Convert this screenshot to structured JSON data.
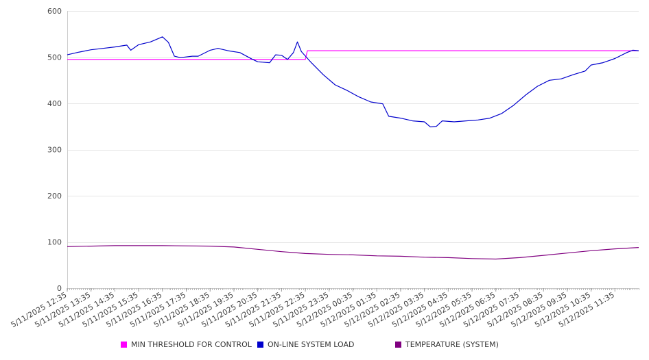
{
  "chart_data": {
    "type": "line",
    "title": "",
    "xlabel": "",
    "ylabel": "",
    "ylim": [
      0,
      600
    ],
    "yticks": [
      0,
      100,
      200,
      300,
      400,
      500,
      600
    ],
    "grid": true,
    "legend_position": "bottom",
    "x_tick_labels": [
      "5/11/2025 12:35",
      "5/11/2025 13:35",
      "5/11/2025 14:35",
      "5/11/2025 15:35",
      "5/11/2025 16:35",
      "5/11/2025 17:35",
      "5/11/2025 18:35",
      "5/11/2025 19:35",
      "5/11/2025 20:35",
      "5/11/2025 21:35",
      "5/11/2025 22:35",
      "5/11/2025 23:35",
      "5/12/2025 00:35",
      "5/12/2025 01:35",
      "5/12/2025 02:35",
      "5/12/2025 03:35",
      "5/12/2025 04:35",
      "5/12/2025 05:35",
      "5/12/2025 06:35",
      "5/12/2025 07:35",
      "5/12/2025 08:35",
      "5/12/2025 09:35",
      "5/12/2025 10:35",
      "5/12/2025 11:35"
    ],
    "series": [
      {
        "name": "MIN THRESHOLD FOR CONTROL",
        "color": "#ff00ff",
        "points": [
          [
            "5/11/2025 12:35",
            495
          ],
          [
            "5/11/2025 22:35",
            495
          ],
          [
            "5/11/2025 22:40",
            514
          ],
          [
            "5/12/2025 12:35",
            514
          ]
        ]
      },
      {
        "name": "ON-LINE SYSTEM LOAD",
        "color": "#0000cc",
        "points": [
          [
            "5/11/2025 12:35",
            505
          ],
          [
            "5/11/2025 13:05",
            511
          ],
          [
            "5/11/2025 13:35",
            516
          ],
          [
            "5/11/2025 14:05",
            519
          ],
          [
            "5/11/2025 14:35",
            522
          ],
          [
            "5/11/2025 15:05",
            526
          ],
          [
            "5/11/2025 15:15",
            515
          ],
          [
            "5/11/2025 15:35",
            527
          ],
          [
            "5/11/2025 16:05",
            533
          ],
          [
            "5/11/2025 16:35",
            544
          ],
          [
            "5/11/2025 16:50",
            532
          ],
          [
            "5/11/2025 17:05",
            502
          ],
          [
            "5/11/2025 17:20",
            499
          ],
          [
            "5/11/2025 17:50",
            502
          ],
          [
            "5/11/2025 18:05",
            502
          ],
          [
            "5/11/2025 18:35",
            515
          ],
          [
            "5/11/2025 18:55",
            519
          ],
          [
            "5/11/2025 19:20",
            514
          ],
          [
            "5/11/2025 19:50",
            510
          ],
          [
            "5/11/2025 20:20",
            496
          ],
          [
            "5/11/2025 20:35",
            490
          ],
          [
            "5/11/2025 21:05",
            488
          ],
          [
            "5/11/2025 21:20",
            505
          ],
          [
            "5/11/2025 21:35",
            504
          ],
          [
            "5/11/2025 21:50",
            495
          ],
          [
            "5/11/2025 22:05",
            510
          ],
          [
            "5/11/2025 22:15",
            533
          ],
          [
            "5/11/2025 22:25",
            512
          ],
          [
            "5/11/2025 22:50",
            488
          ],
          [
            "5/11/2025 23:20",
            462
          ],
          [
            "5/11/2025 23:50",
            440
          ],
          [
            "5/12/2025 00:20",
            428
          ],
          [
            "5/12/2025 00:50",
            414
          ],
          [
            "5/12/2025 01:20",
            403
          ],
          [
            "5/12/2025 01:50",
            399
          ],
          [
            "5/12/2025 02:05",
            372
          ],
          [
            "5/12/2025 02:35",
            368
          ],
          [
            "5/12/2025 03:05",
            362
          ],
          [
            "5/12/2025 03:35",
            360
          ],
          [
            "5/12/2025 03:50",
            349
          ],
          [
            "5/12/2025 04:05",
            350
          ],
          [
            "5/12/2025 04:20",
            362
          ],
          [
            "5/12/2025 04:50",
            360
          ],
          [
            "5/12/2025 05:20",
            362
          ],
          [
            "5/12/2025 05:50",
            364
          ],
          [
            "5/12/2025 06:20",
            368
          ],
          [
            "5/12/2025 06:50",
            378
          ],
          [
            "5/12/2025 07:20",
            396
          ],
          [
            "5/12/2025 07:50",
            418
          ],
          [
            "5/12/2025 08:20",
            437
          ],
          [
            "5/12/2025 08:50",
            450
          ],
          [
            "5/12/2025 09:20",
            453
          ],
          [
            "5/12/2025 09:50",
            462
          ],
          [
            "5/12/2025 10:20",
            470
          ],
          [
            "5/12/2025 10:35",
            483
          ],
          [
            "5/12/2025 11:05",
            488
          ],
          [
            "5/12/2025 11:35",
            497
          ],
          [
            "5/12/2025 12:05",
            510
          ],
          [
            "5/12/2025 12:20",
            515
          ],
          [
            "5/12/2025 12:35",
            514
          ]
        ]
      },
      {
        "name": "TEMPERATURE (SYSTEM)",
        "color": "#800080",
        "points": [
          [
            "5/11/2025 12:35",
            90
          ],
          [
            "5/11/2025 13:35",
            91
          ],
          [
            "5/11/2025 14:35",
            92
          ],
          [
            "5/11/2025 16:35",
            92
          ],
          [
            "5/11/2025 18:35",
            91
          ],
          [
            "5/11/2025 19:35",
            89
          ],
          [
            "5/11/2025 20:35",
            84
          ],
          [
            "5/11/2025 21:35",
            79
          ],
          [
            "5/11/2025 22:35",
            75
          ],
          [
            "5/11/2025 23:35",
            73
          ],
          [
            "5/12/2025 00:35",
            72
          ],
          [
            "5/12/2025 01:35",
            70
          ],
          [
            "5/12/2025 02:35",
            69
          ],
          [
            "5/12/2025 03:35",
            67
          ],
          [
            "5/12/2025 04:35",
            66
          ],
          [
            "5/12/2025 05:35",
            64
          ],
          [
            "5/12/2025 06:35",
            63
          ],
          [
            "5/12/2025 07:35",
            66
          ],
          [
            "5/12/2025 08:35",
            71
          ],
          [
            "5/12/2025 09:35",
            76
          ],
          [
            "5/12/2025 10:35",
            81
          ],
          [
            "5/12/2025 11:35",
            85
          ],
          [
            "5/12/2025 12:35",
            88
          ]
        ]
      }
    ]
  }
}
